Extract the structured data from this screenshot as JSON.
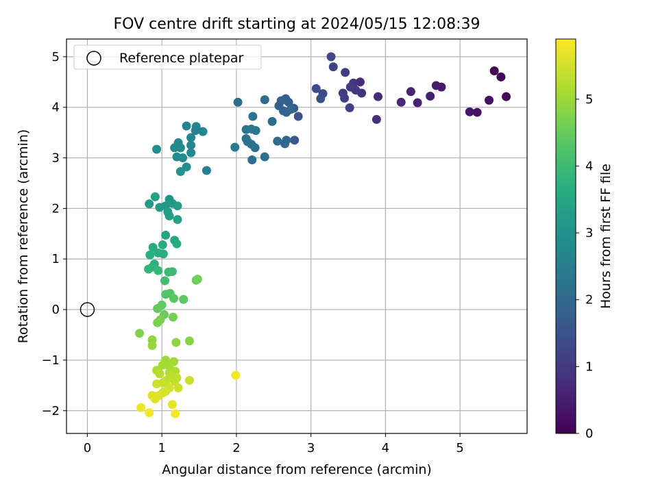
{
  "chart_data": {
    "type": "scatter",
    "title": "FOV centre drift starting at 2024/05/15 12:08:39",
    "xlabel": "Angular distance from reference (arcmin)",
    "ylabel": "Rotation from reference (arcmin)",
    "xlim": [
      -0.28,
      5.9
    ],
    "ylim": [
      -2.45,
      5.35
    ],
    "xticks": [
      0,
      1,
      2,
      3,
      4,
      5
    ],
    "yticks": [
      -2,
      -1,
      0,
      1,
      2,
      3,
      4,
      5
    ],
    "grid": true,
    "colormap": "viridis",
    "colorbar": {
      "label": "Hours from first FF file",
      "range": [
        0,
        5.9
      ],
      "ticks": [
        0,
        1,
        2,
        3,
        4,
        5
      ]
    },
    "legend": {
      "placement": "top-left",
      "entries": [
        "Reference platepar"
      ]
    },
    "reference_point": {
      "x": 0,
      "y": 0
    },
    "points": [
      {
        "x": 5.46,
        "y": 4.72,
        "t": 0.05
      },
      {
        "x": 5.55,
        "y": 4.6,
        "t": 0.1
      },
      {
        "x": 5.62,
        "y": 4.21,
        "t": 0.15
      },
      {
        "x": 5.39,
        "y": 4.14,
        "t": 0.25
      },
      {
        "x": 5.23,
        "y": 3.9,
        "t": 0.3
      },
      {
        "x": 5.13,
        "y": 3.91,
        "t": 0.35
      },
      {
        "x": 4.75,
        "y": 4.4,
        "t": 0.4
      },
      {
        "x": 4.68,
        "y": 4.43,
        "t": 0.45
      },
      {
        "x": 4.6,
        "y": 4.22,
        "t": 0.5
      },
      {
        "x": 4.43,
        "y": 4.09,
        "t": 0.55
      },
      {
        "x": 4.34,
        "y": 4.31,
        "t": 0.6
      },
      {
        "x": 4.21,
        "y": 4.1,
        "t": 0.65
      },
      {
        "x": 3.9,
        "y": 4.21,
        "t": 0.7
      },
      {
        "x": 3.88,
        "y": 3.76,
        "t": 0.8
      },
      {
        "x": 3.66,
        "y": 4.5,
        "t": 0.8
      },
      {
        "x": 3.68,
        "y": 4.28,
        "t": 0.85
      },
      {
        "x": 3.57,
        "y": 4.48,
        "t": 0.9
      },
      {
        "x": 3.6,
        "y": 4.34,
        "t": 0.95
      },
      {
        "x": 3.53,
        "y": 4.4,
        "t": 1.0
      },
      {
        "x": 3.46,
        "y": 4.69,
        "t": 1.05
      },
      {
        "x": 3.43,
        "y": 4.28,
        "t": 1.05
      },
      {
        "x": 3.45,
        "y": 4.18,
        "t": 1.1
      },
      {
        "x": 3.52,
        "y": 3.99,
        "t": 1.15
      },
      {
        "x": 3.3,
        "y": 4.8,
        "t": 1.2
      },
      {
        "x": 3.27,
        "y": 5.0,
        "t": 1.25
      },
      {
        "x": 3.16,
        "y": 4.27,
        "t": 1.3
      },
      {
        "x": 3.07,
        "y": 4.37,
        "t": 1.4
      },
      {
        "x": 3.13,
        "y": 4.17,
        "t": 1.45
      },
      {
        "x": 2.83,
        "y": 3.82,
        "t": 1.55
      },
      {
        "x": 2.77,
        "y": 3.98,
        "t": 1.6
      },
      {
        "x": 2.78,
        "y": 3.35,
        "t": 1.65
      },
      {
        "x": 2.66,
        "y": 4.17,
        "t": 1.7
      },
      {
        "x": 2.7,
        "y": 4.1,
        "t": 1.75
      },
      {
        "x": 2.6,
        "y": 4.13,
        "t": 1.8
      },
      {
        "x": 2.57,
        "y": 4.03,
        "t": 1.8
      },
      {
        "x": 2.63,
        "y": 3.93,
        "t": 1.85
      },
      {
        "x": 2.67,
        "y": 3.9,
        "t": 1.9
      },
      {
        "x": 2.73,
        "y": 3.96,
        "t": 1.95
      },
      {
        "x": 2.65,
        "y": 3.28,
        "t": 2.0
      },
      {
        "x": 2.67,
        "y": 3.35,
        "t": 2.0
      },
      {
        "x": 2.55,
        "y": 3.33,
        "t": 2.05
      },
      {
        "x": 2.48,
        "y": 3.72,
        "t": 2.05
      },
      {
        "x": 2.38,
        "y": 4.15,
        "t": 2.1
      },
      {
        "x": 2.02,
        "y": 4.1,
        "t": 2.1
      },
      {
        "x": 2.38,
        "y": 3.02,
        "t": 2.15
      },
      {
        "x": 2.21,
        "y": 2.96,
        "t": 2.15
      },
      {
        "x": 2.25,
        "y": 3.2,
        "t": 2.2
      },
      {
        "x": 2.2,
        "y": 3.27,
        "t": 2.2
      },
      {
        "x": 2.13,
        "y": 3.38,
        "t": 2.25
      },
      {
        "x": 2.15,
        "y": 3.32,
        "t": 2.25
      },
      {
        "x": 2.22,
        "y": 3.82,
        "t": 2.3
      },
      {
        "x": 2.13,
        "y": 3.56,
        "t": 2.3
      },
      {
        "x": 2.2,
        "y": 3.57,
        "t": 2.35
      },
      {
        "x": 2.26,
        "y": 3.54,
        "t": 2.35
      },
      {
        "x": 1.98,
        "y": 3.21,
        "t": 2.4
      },
      {
        "x": 1.6,
        "y": 2.75,
        "t": 2.55
      },
      {
        "x": 1.33,
        "y": 3.63,
        "t": 2.6
      },
      {
        "x": 1.46,
        "y": 3.62,
        "t": 2.6
      },
      {
        "x": 1.55,
        "y": 3.52,
        "t": 2.65
      },
      {
        "x": 1.45,
        "y": 3.54,
        "t": 2.65
      },
      {
        "x": 1.39,
        "y": 3.4,
        "t": 2.7
      },
      {
        "x": 1.39,
        "y": 3.25,
        "t": 2.7
      },
      {
        "x": 1.39,
        "y": 3.1,
        "t": 2.75
      },
      {
        "x": 1.22,
        "y": 3.3,
        "t": 2.75
      },
      {
        "x": 1.17,
        "y": 3.2,
        "t": 2.8
      },
      {
        "x": 1.25,
        "y": 3.2,
        "t": 2.8
      },
      {
        "x": 1.2,
        "y": 3.02,
        "t": 2.85
      },
      {
        "x": 1.28,
        "y": 3.0,
        "t": 2.85
      },
      {
        "x": 0.93,
        "y": 3.17,
        "t": 2.9
      },
      {
        "x": 1.33,
        "y": 2.82,
        "t": 2.9
      },
      {
        "x": 1.25,
        "y": 2.73,
        "t": 2.95
      },
      {
        "x": 1.1,
        "y": 2.18,
        "t": 3.05
      },
      {
        "x": 1.14,
        "y": 2.1,
        "t": 3.1
      },
      {
        "x": 1.05,
        "y": 2.05,
        "t": 3.1
      },
      {
        "x": 0.83,
        "y": 2.09,
        "t": 3.15
      },
      {
        "x": 0.97,
        "y": 2.02,
        "t": 3.2
      },
      {
        "x": 1.21,
        "y": 2.05,
        "t": 3.25
      },
      {
        "x": 1.08,
        "y": 1.93,
        "t": 3.25
      },
      {
        "x": 1.1,
        "y": 1.85,
        "t": 3.3
      },
      {
        "x": 1.21,
        "y": 1.78,
        "t": 3.35
      },
      {
        "x": 0.91,
        "y": 2.23,
        "t": 3.35
      },
      {
        "x": 1.05,
        "y": 1.47,
        "t": 3.45
      },
      {
        "x": 1.17,
        "y": 1.37,
        "t": 3.5
      },
      {
        "x": 1.2,
        "y": 1.3,
        "t": 3.55
      },
      {
        "x": 1.01,
        "y": 1.28,
        "t": 3.6
      },
      {
        "x": 0.88,
        "y": 1.23,
        "t": 3.6
      },
      {
        "x": 0.95,
        "y": 1.12,
        "t": 3.65
      },
      {
        "x": 1.02,
        "y": 1.1,
        "t": 3.7
      },
      {
        "x": 0.84,
        "y": 1.08,
        "t": 3.7
      },
      {
        "x": 0.9,
        "y": 0.9,
        "t": 3.75
      },
      {
        "x": 0.87,
        "y": 0.84,
        "t": 3.8
      },
      {
        "x": 0.82,
        "y": 0.8,
        "t": 3.85
      },
      {
        "x": 0.95,
        "y": 0.77,
        "t": 3.9
      },
      {
        "x": 1.09,
        "y": 0.74,
        "t": 3.95
      },
      {
        "x": 1.14,
        "y": 0.75,
        "t": 4.0
      },
      {
        "x": 1.04,
        "y": 0.57,
        "t": 4.05
      },
      {
        "x": 1.46,
        "y": 0.58,
        "t": 4.55
      },
      {
        "x": 1.48,
        "y": 0.6,
        "t": 4.6
      },
      {
        "x": 1.29,
        "y": 0.2,
        "t": 4.4
      },
      {
        "x": 1.11,
        "y": 0.32,
        "t": 4.3
      },
      {
        "x": 1.05,
        "y": 0.3,
        "t": 4.25
      },
      {
        "x": 1.16,
        "y": 0.22,
        "t": 4.35
      },
      {
        "x": 1.0,
        "y": 0.09,
        "t": 4.45
      },
      {
        "x": 0.94,
        "y": 0.02,
        "t": 4.5
      },
      {
        "x": 1.03,
        "y": -0.1,
        "t": 4.55
      },
      {
        "x": 1.15,
        "y": -0.15,
        "t": 4.6
      },
      {
        "x": 0.98,
        "y": -0.2,
        "t": 4.65
      },
      {
        "x": 0.94,
        "y": -0.26,
        "t": 4.7
      },
      {
        "x": 0.7,
        "y": -0.47,
        "t": 4.75
      },
      {
        "x": 1.37,
        "y": -0.62,
        "t": 4.8
      },
      {
        "x": 1.19,
        "y": -0.65,
        "t": 4.85
      },
      {
        "x": 0.87,
        "y": -0.6,
        "t": 4.9
      },
      {
        "x": 0.87,
        "y": -0.71,
        "t": 4.95
      },
      {
        "x": 1.05,
        "y": -1.0,
        "t": 5.0
      },
      {
        "x": 1.16,
        "y": -1.03,
        "t": 5.05
      },
      {
        "x": 1.01,
        "y": -1.1,
        "t": 5.1
      },
      {
        "x": 1.1,
        "y": -1.12,
        "t": 5.1
      },
      {
        "x": 0.93,
        "y": -1.2,
        "t": 5.15
      },
      {
        "x": 1.18,
        "y": -1.22,
        "t": 5.2
      },
      {
        "x": 1.1,
        "y": -1.25,
        "t": 5.2
      },
      {
        "x": 0.97,
        "y": -1.27,
        "t": 5.25
      },
      {
        "x": 1.13,
        "y": -1.32,
        "t": 5.3
      },
      {
        "x": 1.2,
        "y": -1.35,
        "t": 5.3
      },
      {
        "x": 1.06,
        "y": -1.4,
        "t": 5.35
      },
      {
        "x": 1.17,
        "y": -1.42,
        "t": 5.35
      },
      {
        "x": 1.37,
        "y": -1.4,
        "t": 5.4
      },
      {
        "x": 1.01,
        "y": -1.45,
        "t": 5.4
      },
      {
        "x": 0.93,
        "y": -1.47,
        "t": 5.45
      },
      {
        "x": 1.22,
        "y": -1.55,
        "t": 5.45
      },
      {
        "x": 1.1,
        "y": -1.55,
        "t": 5.5
      },
      {
        "x": 1.05,
        "y": -1.62,
        "t": 5.5
      },
      {
        "x": 1.01,
        "y": -1.65,
        "t": 5.55
      },
      {
        "x": 0.96,
        "y": -1.7,
        "t": 5.6
      },
      {
        "x": 0.87,
        "y": -1.7,
        "t": 5.6
      },
      {
        "x": 0.91,
        "y": -1.77,
        "t": 5.65
      },
      {
        "x": 1.14,
        "y": -1.88,
        "t": 5.7
      },
      {
        "x": 0.72,
        "y": -1.94,
        "t": 5.75
      },
      {
        "x": 0.83,
        "y": -2.04,
        "t": 5.8
      },
      {
        "x": 1.18,
        "y": -2.06,
        "t": 5.85
      },
      {
        "x": 1.99,
        "y": -1.3,
        "t": 5.8
      }
    ]
  }
}
